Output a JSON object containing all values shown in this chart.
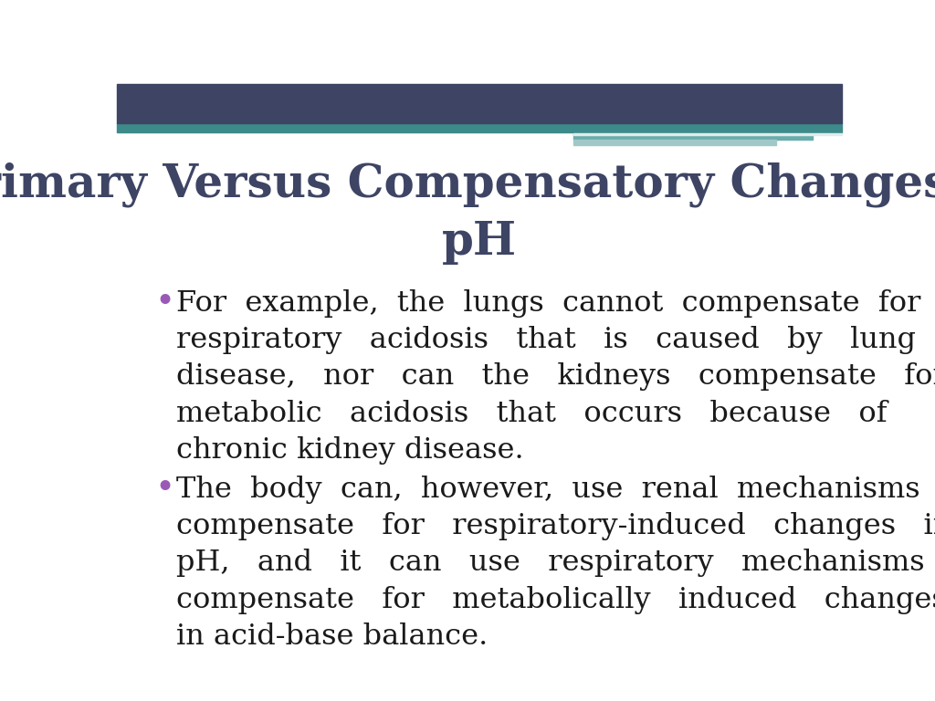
{
  "title_line1": "Primary Versus Compensatory Changes in",
  "title_line2": "pH",
  "title_color": "#3d4464",
  "title_fontsize": 36,
  "bullet_color": "#9b59b6",
  "body_color": "#1a1a1a",
  "body_fontsize": 23,
  "background_color": "#ffffff",
  "header_bar_color": "#3d4464",
  "header_bar_height": 0.072,
  "teal_color": "#3d8a8a",
  "teal_light_color": "#6aacac",
  "teal_lighter_color": "#a0c8c8",
  "bullet1_lines": [
    "For  example,  the  lungs  cannot  compensate  for",
    "respiratory   acidosis   that   is   caused   by   lung",
    "disease,   nor   can   the   kidneys   compensate   for",
    "metabolic   acidosis   that   occurs   because   of",
    "chronic kidney disease."
  ],
  "bullet2_lines": [
    "The  body  can,  however,  use  renal  mechanisms  to",
    "compensate   for   respiratory-induced   changes   in",
    "pH,   and   it   can   use   respiratory   mechanisms   to",
    "compensate   for   metabolically   induced   changes",
    "in acid-base balance."
  ]
}
